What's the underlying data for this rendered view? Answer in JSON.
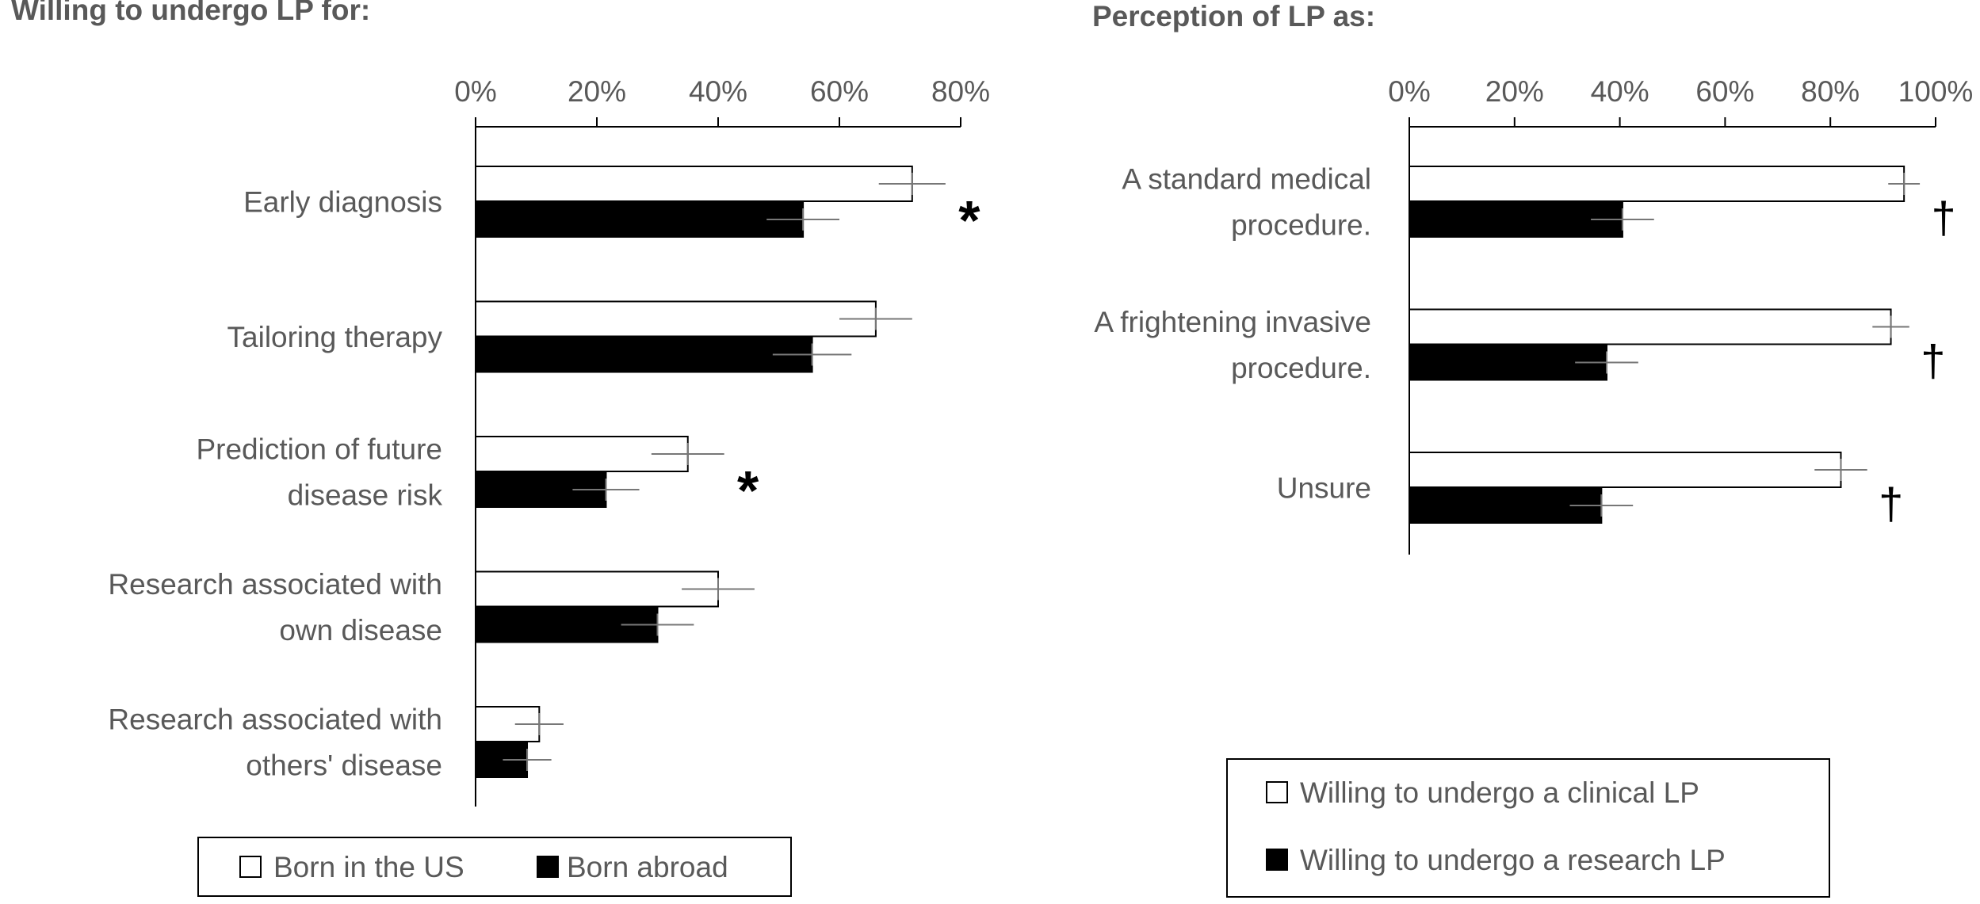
{
  "chart_data": [
    {
      "type": "bar",
      "orientation": "horizontal",
      "title": "Willing to undergo LP for:",
      "xlabel": "",
      "ylabel": "",
      "xlim": [
        0,
        80
      ],
      "xticks": [
        0,
        20,
        40,
        60,
        80
      ],
      "tick_labels": [
        "0%",
        "20%",
        "40%",
        "60%",
        "80%"
      ],
      "grid": false,
      "categories": [
        [
          "Early diagnosis"
        ],
        [
          "Tailoring therapy"
        ],
        [
          "Prediction of future",
          "disease risk"
        ],
        [
          "Research associated with",
          "own disease"
        ],
        [
          "Research associated with",
          "others' disease"
        ]
      ],
      "series": [
        {
          "name": "Born in the US",
          "fill": "#ffffff",
          "values": [
            72,
            66,
            35,
            40,
            10.5
          ],
          "errors": [
            5.5,
            6,
            6,
            6,
            4
          ]
        },
        {
          "name": "Born abroad",
          "fill": "#000000",
          "values": [
            54,
            55.5,
            21.5,
            30,
            8.5
          ],
          "errors": [
            6,
            6.5,
            5.5,
            6,
            4
          ]
        }
      ],
      "annotations": [
        {
          "category_index": 0,
          "text": "*"
        },
        {
          "category_index": 2,
          "text": "*"
        }
      ],
      "legend_position": "bottom"
    },
    {
      "type": "bar",
      "orientation": "horizontal",
      "title": "Perception of LP as:",
      "xlabel": "",
      "ylabel": "",
      "xlim": [
        0,
        100
      ],
      "xticks": [
        0,
        20,
        40,
        60,
        80,
        100
      ],
      "tick_labels": [
        "0%",
        "20%",
        "40%",
        "60%",
        "80%",
        "100%"
      ],
      "grid": false,
      "categories": [
        [
          "A standard medical",
          "procedure."
        ],
        [
          "A frightening invasive",
          "procedure."
        ],
        [
          "Unsure"
        ]
      ],
      "series": [
        {
          "name": "Willing to undergo a clinical LP",
          "fill": "#ffffff",
          "values": [
            94,
            91.5,
            82
          ],
          "errors": [
            3,
            3.5,
            5
          ]
        },
        {
          "name": "Willing to undergo a research LP",
          "fill": "#000000",
          "values": [
            40.5,
            37.5,
            36.5
          ],
          "errors": [
            6,
            6,
            6
          ]
        }
      ],
      "annotations": [
        {
          "category_index": 0,
          "text": "†"
        },
        {
          "category_index": 1,
          "text": "†"
        },
        {
          "category_index": 2,
          "text": "†"
        }
      ],
      "legend_position": "bottom"
    }
  ]
}
